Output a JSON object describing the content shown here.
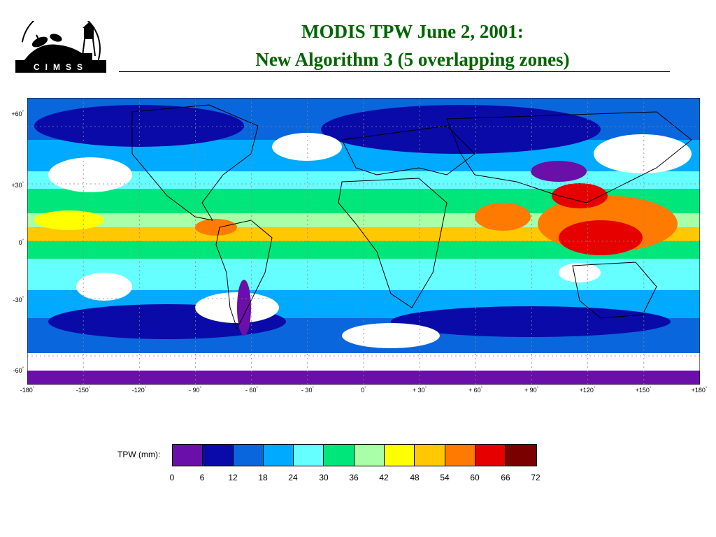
{
  "header": {
    "logo_text": "CIMSS",
    "title_line1": "MODIS TPW June 2, 2001:",
    "title_line2": "New Algorithm 3 (5 overlapping zones)"
  },
  "map": {
    "projection": "equirectangular",
    "grid": true,
    "lon_ticks": [
      "-180",
      "-150",
      "-120",
      "- 90",
      "- 60",
      "- 30",
      "0",
      "+ 30",
      "+ 60",
      "+ 90",
      "+120",
      "+150",
      "+180"
    ],
    "lat_ticks": [
      "+60",
      "+30",
      "0",
      "-30",
      "-60"
    ],
    "degree_symbol": "°",
    "lon_range": [
      -180,
      180
    ],
    "lat_range": [
      -75,
      75
    ]
  },
  "legend": {
    "label": "TPW (mm):",
    "values": [
      "0",
      "6",
      "12",
      "18",
      "24",
      "30",
      "36",
      "42",
      "48",
      "54",
      "60",
      "66",
      "72"
    ],
    "colors": [
      "#6a0fa8",
      "#0a0aa8",
      "#0a66dd",
      "#00aaff",
      "#66ffff",
      "#00e67a",
      "#a8ffa8",
      "#ffff00",
      "#ffc800",
      "#ff7a00",
      "#e60000",
      "#7a0000"
    ]
  },
  "colors": {
    "title": "#006400",
    "no_data": "#ffffff",
    "coastline": "#000000"
  }
}
